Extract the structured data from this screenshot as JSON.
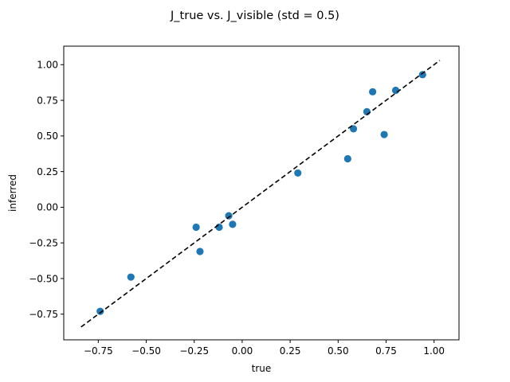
{
  "chart_data": {
    "type": "scatter",
    "title": "J_true vs. J_visible (std = 0.5)",
    "xlabel": "true",
    "ylabel": "inferred",
    "xlim": [
      -0.93,
      1.13
    ],
    "ylim": [
      -0.93,
      1.13
    ],
    "xticks": [
      -0.75,
      -0.5,
      -0.25,
      0.0,
      0.25,
      0.5,
      0.75,
      1.0
    ],
    "xtick_labels": [
      "−0.75",
      "−0.50",
      "−0.25",
      "0.00",
      "0.25",
      "0.50",
      "0.75",
      "1.00"
    ],
    "yticks": [
      -0.75,
      -0.5,
      -0.25,
      0.0,
      0.25,
      0.5,
      0.75,
      1.0
    ],
    "ytick_labels": [
      "−0.75",
      "−0.50",
      "−0.25",
      "0.00",
      "0.25",
      "0.50",
      "0.75",
      "1.00"
    ],
    "grid": false,
    "legend": false,
    "marker_color": "#1f77b4",
    "reference_line": {
      "style": "dashed",
      "color": "#000000",
      "x": [
        -0.84,
        1.03
      ],
      "y": [
        -0.84,
        1.03
      ]
    },
    "points": [
      {
        "x": -0.74,
        "y": -0.73
      },
      {
        "x": -0.58,
        "y": -0.49
      },
      {
        "x": -0.24,
        "y": -0.14
      },
      {
        "x": -0.22,
        "y": -0.31
      },
      {
        "x": -0.12,
        "y": -0.14
      },
      {
        "x": -0.07,
        "y": -0.06
      },
      {
        "x": -0.05,
        "y": -0.12
      },
      {
        "x": 0.29,
        "y": 0.24
      },
      {
        "x": 0.55,
        "y": 0.34
      },
      {
        "x": 0.58,
        "y": 0.55
      },
      {
        "x": 0.65,
        "y": 0.67
      },
      {
        "x": 0.68,
        "y": 0.81
      },
      {
        "x": 0.74,
        "y": 0.51
      },
      {
        "x": 0.8,
        "y": 0.82
      },
      {
        "x": 0.94,
        "y": 0.93
      }
    ]
  }
}
